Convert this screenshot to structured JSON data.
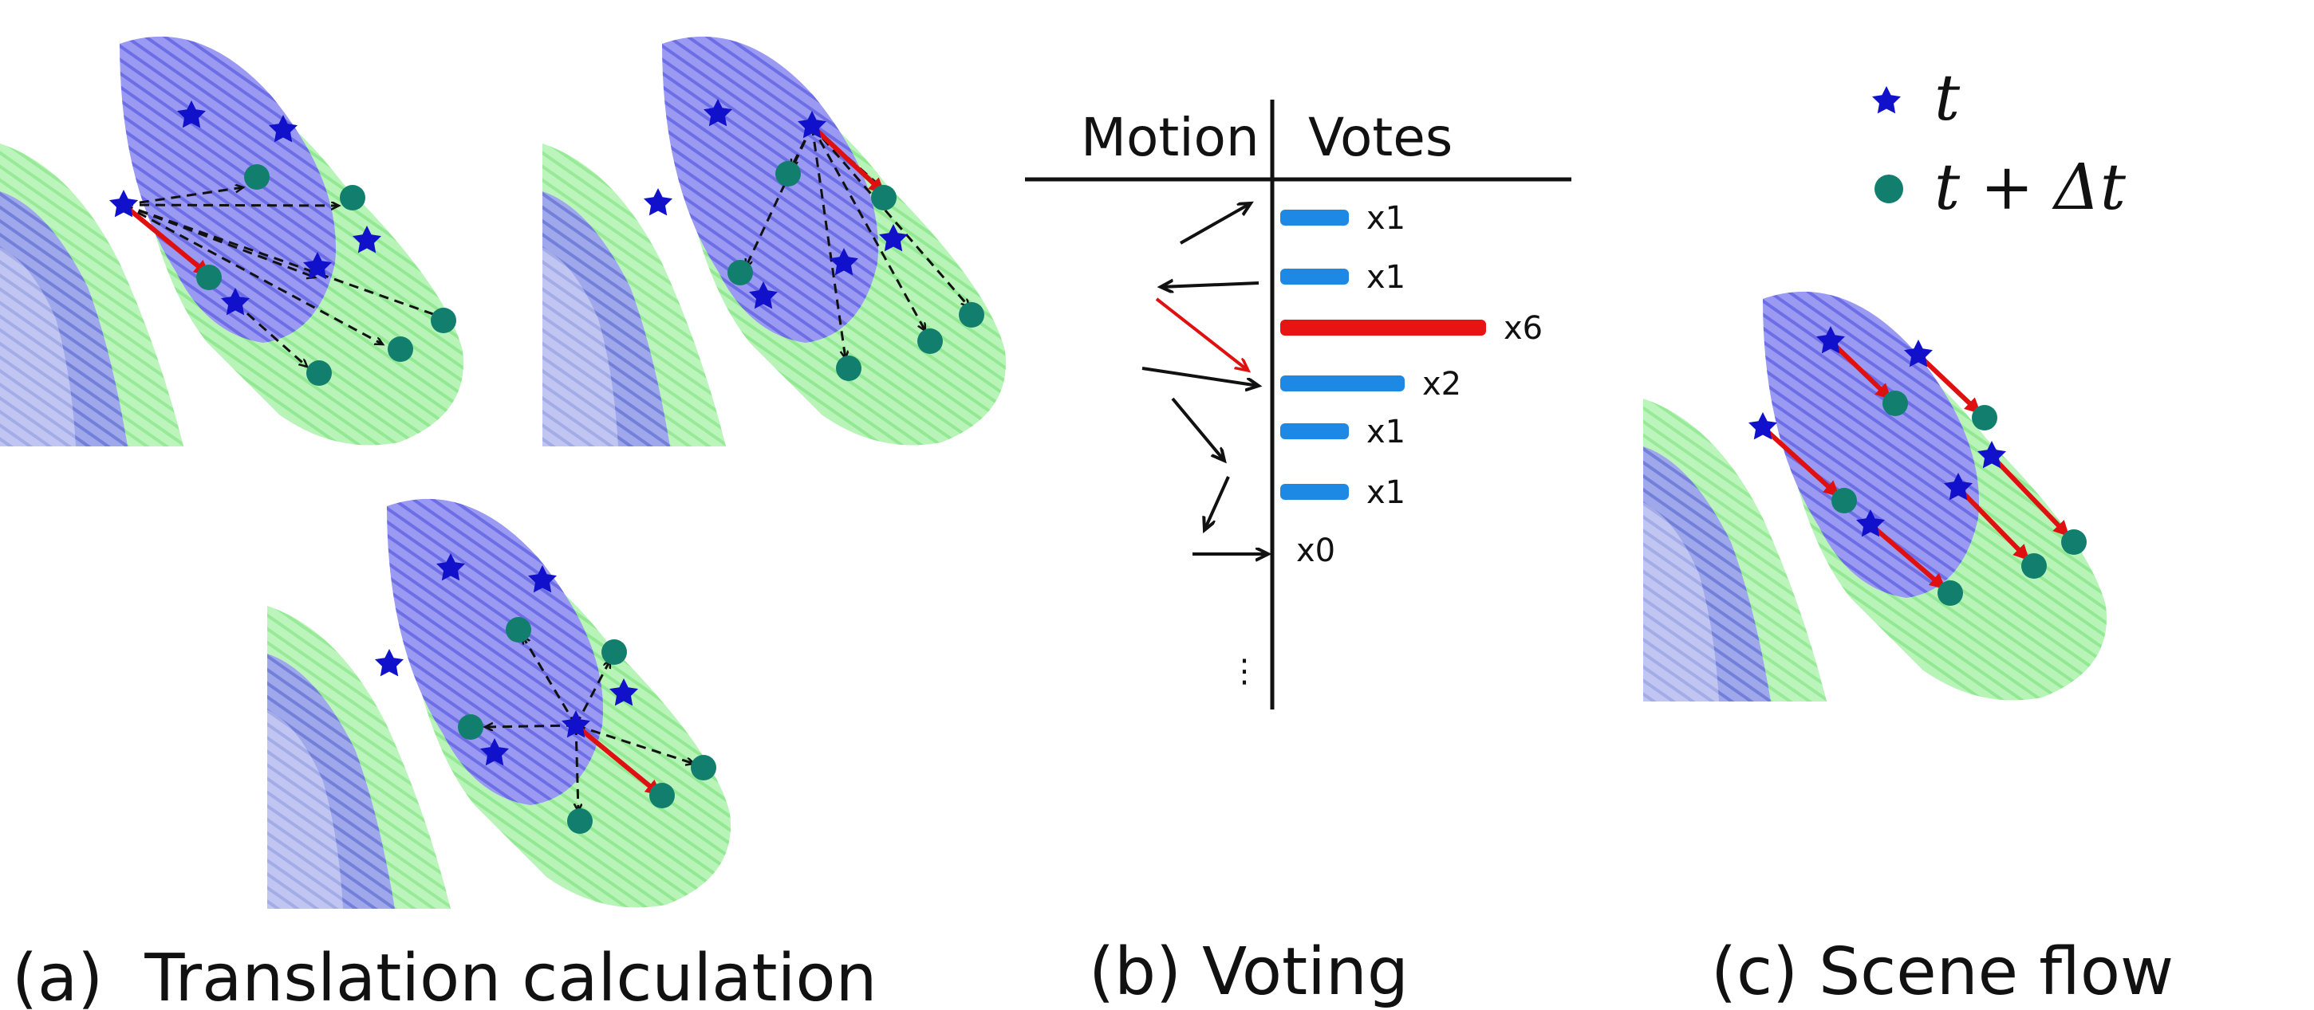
{
  "colors": {
    "point_t": "#7f7fee",
    "point_t_dt": "#a6f0a6",
    "star": "#1111cc",
    "circle": "#127f6e",
    "flow_arrow": "#e01010",
    "vote_bar": "#1e88e5",
    "vote_bar_win": "#e81414"
  },
  "panel_a": {
    "caption": "(a)  Translation calculation"
  },
  "panel_b": {
    "caption": "(b) Voting",
    "header_motion": "Motion",
    "header_votes": "Votes",
    "ellipsis": "⋮",
    "votes": [
      {
        "label": "x1",
        "count": 1,
        "winner": false
      },
      {
        "label": "x1",
        "count": 1,
        "winner": false
      },
      {
        "label": "x6",
        "count": 6,
        "winner": true
      },
      {
        "label": "x2",
        "count": 2,
        "winner": false
      },
      {
        "label": "x1",
        "count": 1,
        "winner": false
      },
      {
        "label": "x1",
        "count": 1,
        "winner": false
      },
      {
        "label": "x0",
        "count": 0,
        "winner": false
      }
    ]
  },
  "panel_c": {
    "caption": "(c) Scene flow",
    "legend_t": "t",
    "legend_t_dt": "t + Δt"
  }
}
